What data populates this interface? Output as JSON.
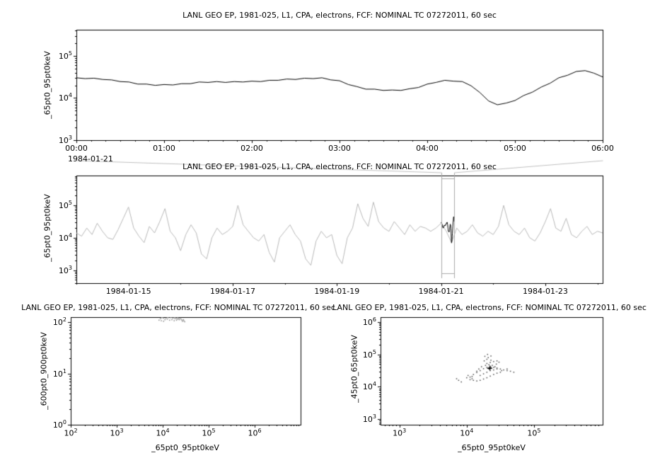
{
  "colors": {
    "axis": "#000000",
    "series": "#000000",
    "context_series": "#b8b8b8",
    "selection_box": "#aaaaaa",
    "connector": "#c0c0c0",
    "scatter_dot_left": "#8a8a8a",
    "scatter_dot_right": "#4a4a4a",
    "marker": "#000000",
    "background": "#ffffff"
  },
  "chart_data": [
    {
      "id": "top-timeseries",
      "type": "line",
      "title": "LANL GEO EP, 1981-025, L1, CPA, electrons, FCF: NOMINAL TC 07272011, 60 sec",
      "ylabel": "_65pt0_95pt0keV",
      "x_start_label": "1984-01-21",
      "x_tick_labels": [
        "00:00",
        "01:00",
        "02:00",
        "03:00",
        "04:00",
        "05:00",
        "06:00"
      ],
      "x_ticks_hours": [
        0,
        1,
        2,
        3,
        4,
        5,
        6
      ],
      "xlim_hours": [
        0,
        6
      ],
      "ylim_log10": [
        3,
        5.62
      ],
      "y_ticks_exp": [
        3,
        4,
        5
      ],
      "x0_hours": 0,
      "dx_hours": 0.1,
      "y_log10": [
        4.48,
        4.46,
        4.47,
        4.44,
        4.43,
        4.39,
        4.38,
        4.33,
        4.33,
        4.3,
        4.32,
        4.31,
        4.34,
        4.34,
        4.38,
        4.37,
        4.39,
        4.37,
        4.39,
        4.38,
        4.4,
        4.39,
        4.42,
        4.42,
        4.45,
        4.44,
        4.47,
        4.46,
        4.48,
        4.43,
        4.41,
        4.32,
        4.27,
        4.21,
        4.21,
        4.18,
        4.19,
        4.18,
        4.22,
        4.25,
        4.33,
        4.37,
        4.42,
        4.4,
        4.39,
        4.29,
        4.13,
        3.93,
        3.84,
        3.88,
        3.94,
        4.06,
        4.14,
        4.26,
        4.35,
        4.48,
        4.54,
        4.63,
        4.65,
        4.59,
        4.5
      ]
    },
    {
      "id": "context-overview",
      "type": "line",
      "title": "LANL GEO EP, 1981-025, L1, CPA, electrons, FCF: NOMINAL TC 07272011, 60 sec",
      "ylabel": "_65pt0_95pt0keV",
      "x_tick_labels": [
        "1984-01-15",
        "1984-01-17",
        "1984-01-19",
        "1984-01-21",
        "1984-01-23"
      ],
      "x_ticks_day": [
        15,
        17,
        19,
        21,
        23
      ],
      "xlim_day": [
        14.0,
        24.1
      ],
      "ylim_log10": [
        2.6,
        5.92
      ],
      "y_ticks_exp": [
        3,
        4,
        5
      ],
      "x0_day": 14.0,
      "dx_day": 0.1,
      "y_log10": [
        4.15,
        4.05,
        4.3,
        4.1,
        4.45,
        4.2,
        4.0,
        3.95,
        4.25,
        4.6,
        4.95,
        4.3,
        4.05,
        3.85,
        4.35,
        4.15,
        4.5,
        4.9,
        4.2,
        4.0,
        3.6,
        4.1,
        4.4,
        4.15,
        3.5,
        3.35,
        4.0,
        4.3,
        4.1,
        4.2,
        4.35,
        5.0,
        4.4,
        4.2,
        4.0,
        3.9,
        4.1,
        3.55,
        3.25,
        4.0,
        4.2,
        4.4,
        4.1,
        3.9,
        3.35,
        3.15,
        3.9,
        4.2,
        4.0,
        4.1,
        3.45,
        3.2,
        4.0,
        4.3,
        5.05,
        4.6,
        4.35,
        5.1,
        4.5,
        4.3,
        4.2,
        4.5,
        4.3,
        4.1,
        4.4,
        4.2,
        4.35,
        4.3,
        4.2,
        4.3,
        4.45,
        4.2,
        3.85,
        4.3,
        4.1,
        4.2,
        4.4,
        4.15,
        4.05,
        4.2,
        4.1,
        4.35,
        5.0,
        4.4,
        4.2,
        4.1,
        4.3,
        4.0,
        3.9,
        4.15,
        4.5,
        4.9,
        4.3,
        4.2,
        4.6,
        4.1,
        4.0,
        4.2,
        4.35,
        4.1,
        4.2,
        4.15,
        4.1
      ],
      "highlight_day_start": 21,
      "selection_day": [
        21.0,
        21.25
      ]
    },
    {
      "id": "scatter-600-900",
      "type": "scatter",
      "title": "LANL GEO EP, 1981-025, L1, CPA, electrons, FCF: NOMINAL TC 07272011, 60 sec",
      "xlabel": "_65pt0_95pt0keV",
      "ylabel": "_600pt0_900pt0keV",
      "xlim_log10": [
        2,
        7
      ],
      "ylim_log10": [
        0,
        2.1
      ],
      "x_ticks_exp": [
        2,
        3,
        4,
        5,
        6
      ],
      "y_ticks_exp": [
        0,
        1,
        2
      ],
      "points_log10": [
        [
          3.92,
          2.04
        ],
        [
          3.95,
          2.07
        ],
        [
          3.98,
          2.09
        ],
        [
          4.0,
          2.1
        ],
        [
          4.02,
          2.08
        ],
        [
          4.05,
          2.11
        ],
        [
          4.08,
          2.12
        ],
        [
          4.1,
          2.1
        ],
        [
          4.12,
          2.13
        ],
        [
          4.15,
          2.11
        ],
        [
          4.17,
          2.09
        ],
        [
          4.18,
          2.12
        ],
        [
          4.2,
          2.1
        ],
        [
          4.22,
          2.08
        ],
        [
          4.23,
          2.11
        ],
        [
          4.25,
          2.09
        ],
        [
          4.27,
          2.07
        ],
        [
          4.28,
          2.1
        ],
        [
          4.3,
          2.08
        ],
        [
          4.32,
          2.06
        ],
        [
          4.33,
          2.09
        ],
        [
          4.35,
          2.07
        ],
        [
          4.36,
          2.05
        ],
        [
          4.38,
          2.08
        ],
        [
          4.4,
          2.06
        ],
        [
          4.42,
          2.04
        ],
        [
          4.43,
          2.02
        ],
        [
          4.45,
          2.05
        ],
        [
          4.46,
          2.03
        ],
        [
          4.48,
          2.01
        ],
        [
          4.05,
          2.05
        ],
        [
          4.1,
          2.06
        ],
        [
          4.15,
          2.04
        ],
        [
          4.2,
          2.05
        ],
        [
          4.25,
          2.03
        ],
        [
          4.3,
          2.04
        ],
        [
          4.12,
          2.09
        ],
        [
          4.07,
          2.08
        ],
        [
          3.97,
          2.03
        ],
        [
          4.02,
          2.02
        ]
      ]
    },
    {
      "id": "scatter-45-65",
      "type": "scatter",
      "title": "LANL GEO EP, 1981-025, L1, CPA, electrons, FCF: NOMINAL TC 07272011, 60 sec",
      "xlabel": "_65pt0_95pt0keV",
      "ylabel": "_45pt0_65pt0keV",
      "xlim_log10": [
        2.72,
        6.02
      ],
      "ylim_log10": [
        2.83,
        6.15
      ],
      "x_ticks_exp": [
        3,
        4,
        5
      ],
      "y_ticks_exp": [
        3,
        4,
        5,
        6
      ],
      "points_log10": [
        [
          4.08,
          4.25
        ],
        [
          4.05,
          4.3
        ],
        [
          4.02,
          4.35
        ],
        [
          4.0,
          4.28
        ],
        [
          4.05,
          4.22
        ],
        [
          4.1,
          4.2
        ],
        [
          4.15,
          4.18
        ],
        [
          4.2,
          4.2
        ],
        [
          4.25,
          4.24
        ],
        [
          4.3,
          4.28
        ],
        [
          4.35,
          4.33
        ],
        [
          4.4,
          4.38
        ],
        [
          4.45,
          4.42
        ],
        [
          4.5,
          4.45
        ],
        [
          4.52,
          4.5
        ],
        [
          4.5,
          4.55
        ],
        [
          4.45,
          4.58
        ],
        [
          4.4,
          4.6
        ],
        [
          4.35,
          4.62
        ],
        [
          4.3,
          4.6
        ],
        [
          4.25,
          4.56
        ],
        [
          4.2,
          4.5
        ],
        [
          4.15,
          4.44
        ],
        [
          4.1,
          4.38
        ],
        [
          4.08,
          4.32
        ],
        [
          4.2,
          4.35
        ],
        [
          4.25,
          4.4
        ],
        [
          4.3,
          4.45
        ],
        [
          4.35,
          4.5
        ],
        [
          4.4,
          4.52
        ],
        [
          4.45,
          4.55
        ],
        [
          4.42,
          4.62
        ],
        [
          4.38,
          4.66
        ],
        [
          4.33,
          4.68
        ],
        [
          4.28,
          4.66
        ],
        [
          4.22,
          4.62
        ],
        [
          4.18,
          4.55
        ],
        [
          4.15,
          4.48
        ],
        [
          4.3,
          4.72
        ],
        [
          4.35,
          4.75
        ],
        [
          4.4,
          4.78
        ],
        [
          4.45,
          4.8
        ],
        [
          4.48,
          4.76
        ],
        [
          4.44,
          4.7
        ],
        [
          4.36,
          4.82
        ],
        [
          4.3,
          4.85
        ],
        [
          4.26,
          4.8
        ],
        [
          4.32,
          4.9
        ],
        [
          4.36,
          4.95
        ],
        [
          4.31,
          5.0
        ],
        [
          4.27,
          4.94
        ],
        [
          4.33,
          4.55
        ],
        [
          4.34,
          4.57
        ],
        [
          4.35,
          4.56
        ],
        [
          4.36,
          4.58
        ],
        [
          4.34,
          4.6
        ],
        [
          4.32,
          4.58
        ],
        [
          4.33,
          4.59
        ],
        [
          4.35,
          4.61
        ],
        [
          4.36,
          4.6
        ],
        [
          4.37,
          4.57
        ],
        [
          4.33,
          4.56
        ],
        [
          4.34,
          4.55
        ],
        [
          4.35,
          4.58
        ],
        [
          4.34,
          4.58
        ],
        [
          4.55,
          4.52
        ],
        [
          4.6,
          4.5
        ],
        [
          4.65,
          4.48
        ],
        [
          4.7,
          4.45
        ],
        [
          4.6,
          4.55
        ],
        [
          3.88,
          4.2
        ],
        [
          3.92,
          4.15
        ],
        [
          3.85,
          4.25
        ]
      ],
      "marker_log10": [
        4.34,
        4.58
      ]
    }
  ]
}
